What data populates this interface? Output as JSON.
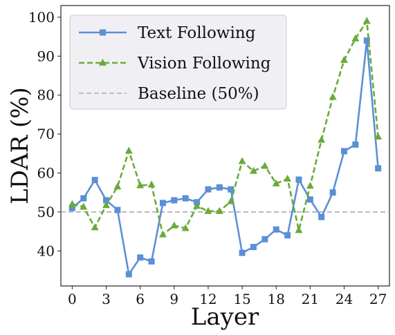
{
  "chart_data": {
    "type": "line",
    "xlabel": "Layer",
    "ylabel": "LDAR (%)",
    "x": [
      0,
      1,
      2,
      3,
      4,
      5,
      6,
      7,
      8,
      9,
      10,
      11,
      12,
      13,
      14,
      15,
      16,
      17,
      18,
      19,
      20,
      21,
      22,
      23,
      24,
      25,
      26,
      27
    ],
    "xticks": [
      0,
      3,
      6,
      9,
      12,
      15,
      18,
      21,
      24,
      27
    ],
    "yticks": [
      40,
      50,
      60,
      70,
      80,
      90,
      100
    ],
    "xlim": [
      -1,
      28
    ],
    "ylim": [
      31,
      103
    ],
    "grid": false,
    "legend_position": "top-left",
    "series": [
      {
        "name": "Text Following",
        "color": "#5b8fd6",
        "marker": "square",
        "linestyle": "solid",
        "values": [
          51,
          53.5,
          58.2,
          53,
          50.5,
          34,
          38.3,
          37.3,
          52.3,
          53,
          53.5,
          52.5,
          55.8,
          56.3,
          55.8,
          39.5,
          41,
          43,
          45.5,
          44,
          58.3,
          53.2,
          48.7,
          55,
          65.6,
          67.3,
          94,
          61.2
        ]
      },
      {
        "name": "Vision Following",
        "color": "#6aaa3a",
        "marker": "triangle",
        "linestyle": "dashed",
        "values": [
          52,
          51.3,
          46,
          51.7,
          56.5,
          65.7,
          56.8,
          57,
          44.2,
          46.5,
          45.8,
          51.5,
          50.2,
          50.2,
          52.7,
          63,
          60.5,
          61.8,
          57.3,
          58.5,
          45.3,
          56.7,
          68.5,
          79.5,
          89,
          94.5,
          99,
          69.3
        ]
      }
    ],
    "reference_lines": [
      {
        "name": "Baseline (50%)",
        "y": 50,
        "color": "#aaaaaa",
        "linestyle": "dashed"
      }
    ]
  }
}
